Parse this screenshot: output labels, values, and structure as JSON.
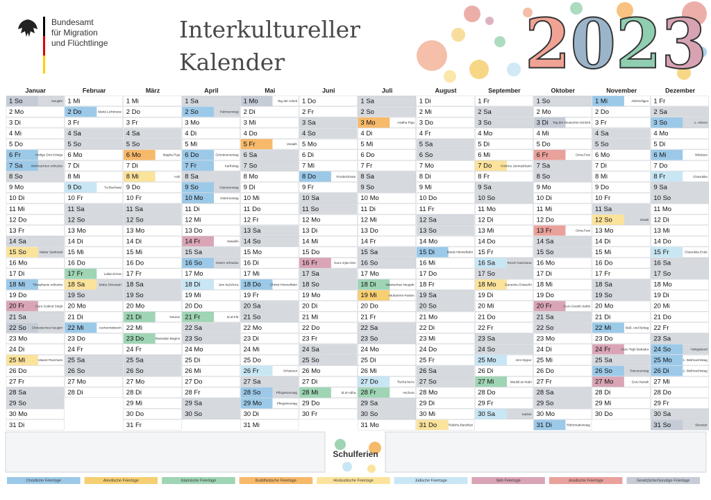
{
  "header": {
    "org": [
      "Bundesamt",
      "für Migration",
      "und Flüchtlinge"
    ],
    "title": [
      "Interkultureller",
      "Kalender"
    ],
    "year": "2023"
  },
  "categories": [
    {
      "name": "Christliche Feiertage",
      "color": "#9cc9e8"
    },
    {
      "name": "Alevitische Feiertage",
      "color": "#f6cf72"
    },
    {
      "name": "Islamische Feiertage",
      "color": "#9fd5b5"
    },
    {
      "name": "Buddhistische Feiertage",
      "color": "#f7b96a"
    },
    {
      "name": "Hinduistische Feiertage",
      "color": "#fbe39c"
    },
    {
      "name": "Jüdische Feiertage",
      "color": "#c9e6f4"
    },
    {
      "name": "Sikh Feiertage",
      "color": "#d9a5b6"
    },
    {
      "name": "Jesidische Feiertage",
      "color": "#e9a19b"
    },
    {
      "name": "Gesetzliche/Sonstige Feiertage",
      "color": "#c5ccd6"
    }
  ],
  "months": [
    {
      "name": "Januar",
      "days": [
        "1 So",
        "2 Mo",
        "3 Di",
        "4 Mi",
        "5 Do",
        "6 Fr",
        "7 Sa",
        "8 So",
        "9 Mo",
        "10 Di",
        "11 Mi",
        "12 Do",
        "13 Fr",
        "14 Sa",
        "15 So",
        "16 Mo",
        "17 Di",
        "18 Mi",
        "19 Do",
        "20 Fr",
        "21 Sa",
        "22 So",
        "23 Mo",
        "24 Di",
        "25 Mi",
        "26 Do",
        "27 Fr",
        "28 Sa",
        "29 So",
        "30 Mo",
        "31 Di"
      ],
      "events": [
        {
          "day": 0,
          "cat": 8,
          "note": "Neujahr"
        },
        {
          "day": 5,
          "cat": 0,
          "note": "Heilige Drei Könige"
        },
        {
          "day": 6,
          "cat": 0,
          "note": "Weihnachten orthodox"
        },
        {
          "day": 14,
          "cat": 4,
          "note": "Makar Sankranti"
        },
        {
          "day": 17,
          "cat": 0,
          "note": "Theophanie orthodox"
        },
        {
          "day": 19,
          "cat": 6,
          "note": "Guru Gobind Singh"
        },
        {
          "day": 21,
          "cat": 8,
          "note": "Chinesisches Neujahr"
        },
        {
          "day": 24,
          "cat": 4,
          "note": "Vasant Panchami"
        }
      ]
    },
    {
      "name": "Februar",
      "days": [
        "1 Mi",
        "2 Do",
        "3 Fr",
        "4 Sa",
        "5 So",
        "6 Mo",
        "7 Di",
        "8 Mi",
        "9 Do",
        "10 Fr",
        "11 Sa",
        "12 So",
        "13 Mo",
        "14 Di",
        "15 Mi",
        "16 Do",
        "17 Fr",
        "18 Sa",
        "19 So",
        "20 Mo",
        "21 Di",
        "22 Mi",
        "23 Do",
        "24 Fr",
        "25 Sa",
        "26 So",
        "27 Mo",
        "28 Di"
      ],
      "events": [
        {
          "day": 1,
          "cat": 0,
          "note": "Mariä Lichtmess"
        },
        {
          "day": 8,
          "cat": 5,
          "note": "Tu Bischwat"
        },
        {
          "day": 16,
          "cat": 2,
          "note": "Lailat al-Isra"
        },
        {
          "day": 17,
          "cat": 4,
          "note": "Maha Shivaratri"
        },
        {
          "day": 21,
          "cat": 0,
          "note": "Aschermittwoch"
        }
      ]
    },
    {
      "name": "März",
      "days": [
        "1 Mi",
        "2 Do",
        "3 Fr",
        "4 Sa",
        "5 So",
        "6 Mo",
        "7 Di",
        "8 Mi",
        "9 Do",
        "10 Fr",
        "11 Sa",
        "12 So",
        "13 Mo",
        "14 Di",
        "15 Mi",
        "16 Do",
        "17 Fr",
        "18 Sa",
        "19 So",
        "20 Mo",
        "21 Di",
        "22 Mi",
        "23 Do",
        "24 Fr",
        "25 Sa",
        "26 So",
        "27 Mo",
        "28 Di",
        "29 Mi",
        "30 Do",
        "31 Fr"
      ],
      "events": [
        {
          "day": 5,
          "cat": 3,
          "note": "Magha Puja"
        },
        {
          "day": 7,
          "cat": 4,
          "note": "Holi"
        },
        {
          "day": 20,
          "cat": 2,
          "note": "Nouruz"
        },
        {
          "day": 22,
          "cat": 2,
          "note": "Ramadan Beginn"
        }
      ]
    },
    {
      "name": "April",
      "days": [
        "1 Sa",
        "2 So",
        "3 Mo",
        "4 Di",
        "5 Mi",
        "6 Do",
        "7 Fr",
        "8 Sa",
        "9 So",
        "10 Mo",
        "11 Di",
        "12 Mi",
        "13 Do",
        "14 Fr",
        "15 Sa",
        "16 So",
        "17 Mo",
        "18 Di",
        "19 Mi",
        "20 Do",
        "21 Fr",
        "22 Sa",
        "23 So",
        "24 Mo",
        "25 Di",
        "26 Mi",
        "27 Do",
        "28 Fr",
        "29 Sa",
        "30 So"
      ],
      "events": [
        {
          "day": 1,
          "cat": 0,
          "note": "Palmsonntag"
        },
        {
          "day": 5,
          "cat": 0,
          "note": "Gründonnerstag"
        },
        {
          "day": 6,
          "cat": 0,
          "note": "Karfreitag"
        },
        {
          "day": 8,
          "cat": 0,
          "note": "Ostersonntag"
        },
        {
          "day": 9,
          "cat": 0,
          "note": "Ostermontag"
        },
        {
          "day": 13,
          "cat": 6,
          "note": "Vaisakhi"
        },
        {
          "day": 15,
          "cat": 0,
          "note": "Ostern orthodox"
        },
        {
          "day": 17,
          "cat": 5,
          "note": "Jom haScho'a"
        },
        {
          "day": 20,
          "cat": 2,
          "note": "Id al-Fitr"
        }
      ]
    },
    {
      "name": "Mai",
      "days": [
        "1 Mo",
        "2 Di",
        "3 Mi",
        "4 Do",
        "5 Fr",
        "6 Sa",
        "7 So",
        "8 Mo",
        "9 Di",
        "10 Mi",
        "11 Do",
        "12 Fr",
        "13 Sa",
        "14 So",
        "15 Mo",
        "16 Di",
        "17 Mi",
        "18 Do",
        "19 Fr",
        "20 Sa",
        "21 So",
        "22 Mo",
        "23 Di",
        "24 Mi",
        "25 Do",
        "26 Fr",
        "27 Sa",
        "28 So",
        "29 Mo",
        "30 Di",
        "31 Mi"
      ],
      "events": [
        {
          "day": 0,
          "cat": 8,
          "note": "Tag der Arbeit"
        },
        {
          "day": 4,
          "cat": 3,
          "note": "Vesakh"
        },
        {
          "day": 17,
          "cat": 0,
          "note": "Christi Himmelfahrt"
        },
        {
          "day": 25,
          "cat": 5,
          "note": "Schawuot"
        },
        {
          "day": 27,
          "cat": 0,
          "note": "Pfingstsonntag"
        },
        {
          "day": 28,
          "cat": 0,
          "note": "Pfingstmontag"
        }
      ]
    },
    {
      "name": "Juni",
      "days": [
        "1 Do",
        "2 Fr",
        "3 Sa",
        "4 So",
        "5 Mo",
        "6 Di",
        "7 Mi",
        "8 Do",
        "9 Fr",
        "10 Sa",
        "11 So",
        "12 Mo",
        "13 Di",
        "14 Mi",
        "15 Do",
        "16 Fr",
        "17 Sa",
        "18 So",
        "19 Mo",
        "20 Di",
        "21 Mi",
        "22 Do",
        "23 Fr",
        "24 Sa",
        "25 So",
        "26 Mo",
        "27 Di",
        "28 Mi",
        "29 Do",
        "30 Fr"
      ],
      "events": [
        {
          "day": 7,
          "cat": 0,
          "note": "Fronleichnam"
        },
        {
          "day": 15,
          "cat": 6,
          "note": "Guru Arjan Dev"
        },
        {
          "day": 27,
          "cat": 2,
          "note": "Id al-Adha"
        }
      ]
    },
    {
      "name": "Juli",
      "days": [
        "1 Sa",
        "2 So",
        "3 Mo",
        "4 Di",
        "5 Mi",
        "6 Do",
        "7 Fr",
        "8 Sa",
        "9 So",
        "10 Mo",
        "11 Di",
        "12 Mi",
        "13 Do",
        "14 Fr",
        "15 Sa",
        "16 So",
        "17 Mo",
        "18 Di",
        "19 Mi",
        "20 Do",
        "21 Fr",
        "22 Sa",
        "23 So",
        "24 Mo",
        "25 Di",
        "26 Mi",
        "27 Do",
        "28 Fr",
        "29 Sa",
        "30 So",
        "31 Mo"
      ],
      "events": [
        {
          "day": 2,
          "cat": 3,
          "note": "Asalha Puja"
        },
        {
          "day": 17,
          "cat": 2,
          "note": "Islamisches Neujahr"
        },
        {
          "day": 18,
          "cat": 1,
          "note": "Muharrem-Fasten"
        },
        {
          "day": 26,
          "cat": 5,
          "note": "Tischa beAv"
        },
        {
          "day": 27,
          "cat": 2,
          "note": "Aschura"
        }
      ]
    },
    {
      "name": "August",
      "days": [
        "1 Di",
        "2 Mi",
        "3 Do",
        "4 Fr",
        "5 Sa",
        "6 So",
        "7 Mo",
        "8 Di",
        "9 Mi",
        "10 Do",
        "11 Fr",
        "12 Sa",
        "13 So",
        "14 Mo",
        "15 Di",
        "16 Mi",
        "17 Do",
        "18 Fr",
        "19 Sa",
        "20 So",
        "21 Mo",
        "22 Di",
        "23 Mi",
        "24 Do",
        "25 Fr",
        "26 Sa",
        "27 So",
        "28 Mo",
        "29 Di",
        "30 Mi",
        "31 Do"
      ],
      "events": [
        {
          "day": 14,
          "cat": 0,
          "note": "Mariä Himmelfahrt"
        },
        {
          "day": 30,
          "cat": 4,
          "note": "Raksha Bandhan"
        }
      ]
    },
    {
      "name": "September",
      "days": [
        "1 Fr",
        "2 Sa",
        "3 So",
        "4 Mo",
        "5 Di",
        "6 Mi",
        "7 Do",
        "8 Fr",
        "9 Sa",
        "10 So",
        "11 Mo",
        "12 Di",
        "13 Mi",
        "14 Do",
        "15 Fr",
        "16 Sa",
        "17 So",
        "18 Mo",
        "19 Di",
        "20 Mi",
        "21 Do",
        "22 Fr",
        "23 Sa",
        "24 So",
        "25 Mo",
        "26 Di",
        "27 Mi",
        "28 Do",
        "29 Fr",
        "30 Sa"
      ],
      "events": [
        {
          "day": 6,
          "cat": 4,
          "note": "Krishna Janmashtami"
        },
        {
          "day": 15,
          "cat": 5,
          "note": "Rosch haSchana"
        },
        {
          "day": 17,
          "cat": 4,
          "note": "Ganesha Chaturthi"
        },
        {
          "day": 24,
          "cat": 5,
          "note": "Jom Kippur"
        },
        {
          "day": 26,
          "cat": 2,
          "note": "Maulid an-Nabi"
        },
        {
          "day": 29,
          "cat": 5,
          "note": "Sukkot"
        }
      ]
    },
    {
      "name": "Oktober",
      "days": [
        "1 So",
        "2 Mo",
        "3 Di",
        "4 Mi",
        "5 Do",
        "6 Fr",
        "7 Sa",
        "8 So",
        "9 Mo",
        "10 Di",
        "11 Mi",
        "12 Do",
        "13 Fr",
        "14 Sa",
        "15 So",
        "16 Mo",
        "17 Di",
        "18 Mi",
        "19 Do",
        "20 Fr",
        "21 Sa",
        "22 So",
        "23 Mo",
        "24 Di",
        "25 Mi",
        "26 Do",
        "27 Fr",
        "28 Sa",
        "29 So",
        "30 Mo",
        "31 Di"
      ],
      "events": [
        {
          "day": 2,
          "cat": 8,
          "note": "Tag der Deutschen Einheit"
        },
        {
          "day": 5,
          "cat": 7,
          "note": "Cima-Fest"
        },
        {
          "day": 12,
          "cat": 7,
          "note": "Cima-Fest"
        },
        {
          "day": 19,
          "cat": 6,
          "note": "Guru Granth Sahib"
        },
        {
          "day": 30,
          "cat": 0,
          "note": "Reformationstag"
        }
      ]
    },
    {
      "name": "November",
      "days": [
        "1 Mi",
        "2 Do",
        "3 Fr",
        "4 Sa",
        "5 So",
        "6 Mo",
        "7 Di",
        "8 Mi",
        "9 Do",
        "10 Fr",
        "11 Sa",
        "12 So",
        "13 Mo",
        "14 Di",
        "15 Mi",
        "16 Do",
        "17 Fr",
        "18 Sa",
        "19 So",
        "20 Mo",
        "21 Di",
        "22 Mi",
        "23 Do",
        "24 Fr",
        "25 Sa",
        "26 So",
        "27 Mo",
        "28 Di",
        "29 Mi",
        "30 Do"
      ],
      "events": [
        {
          "day": 0,
          "cat": 0,
          "note": "Allerheiligen"
        },
        {
          "day": 11,
          "cat": 4,
          "note": "Diwali"
        },
        {
          "day": 21,
          "cat": 0,
          "note": "Buß- und Bettag"
        },
        {
          "day": 23,
          "cat": 6,
          "note": "Guru Tegh Bahadur"
        },
        {
          "day": 25,
          "cat": 0,
          "note": "Totensonntag"
        },
        {
          "day": 26,
          "cat": 6,
          "note": "Guru Nanak"
        }
      ]
    },
    {
      "name": "Dezember",
      "days": [
        "1 Fr",
        "2 Sa",
        "3 So",
        "4 Mo",
        "5 Di",
        "6 Mi",
        "7 Do",
        "8 Fr",
        "9 Sa",
        "10 So",
        "11 Mo",
        "12 Di",
        "13 Mi",
        "14 Do",
        "15 Fr",
        "16 Sa",
        "17 So",
        "18 Mo",
        "19 Di",
        "20 Mi",
        "21 Do",
        "22 Fr",
        "23 Sa",
        "24 So",
        "25 Mo",
        "26 Di",
        "27 Mi",
        "28 Do",
        "29 Fr",
        "30 Sa",
        "31 So"
      ],
      "events": [
        {
          "day": 2,
          "cat": 0,
          "note": "1. Advent"
        },
        {
          "day": 5,
          "cat": 0,
          "note": "Nikolaus"
        },
        {
          "day": 7,
          "cat": 5,
          "note": "Chanukka"
        },
        {
          "day": 14,
          "cat": 5,
          "note": "Chanukka Ende"
        },
        {
          "day": 23,
          "cat": 0,
          "note": "Heiligabend"
        },
        {
          "day": 24,
          "cat": 0,
          "note": "1. Weihnachtstag"
        },
        {
          "day": 25,
          "cat": 0,
          "note": "2. Weihnachtstag"
        },
        {
          "day": 30,
          "cat": 8,
          "note": "Silvester"
        }
      ]
    }
  ],
  "schoolHolidays": {
    "label": "Schulferien"
  }
}
